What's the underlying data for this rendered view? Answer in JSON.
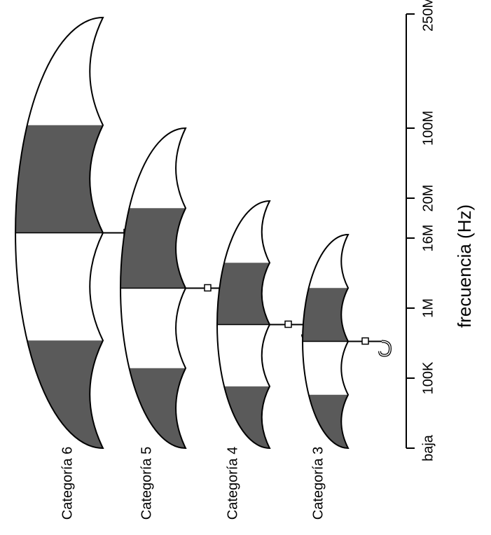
{
  "categories": [
    {
      "label": "Categoría 6"
    },
    {
      "label": "Categoría 5"
    },
    {
      "label": "Categoría 4"
    },
    {
      "label": "Categoría 3"
    }
  ],
  "axis": {
    "title": "frecuencia (Hz)",
    "ticks": [
      "baja",
      "100K",
      "1M",
      "16M",
      "20M",
      "100M",
      "250M"
    ]
  }
}
